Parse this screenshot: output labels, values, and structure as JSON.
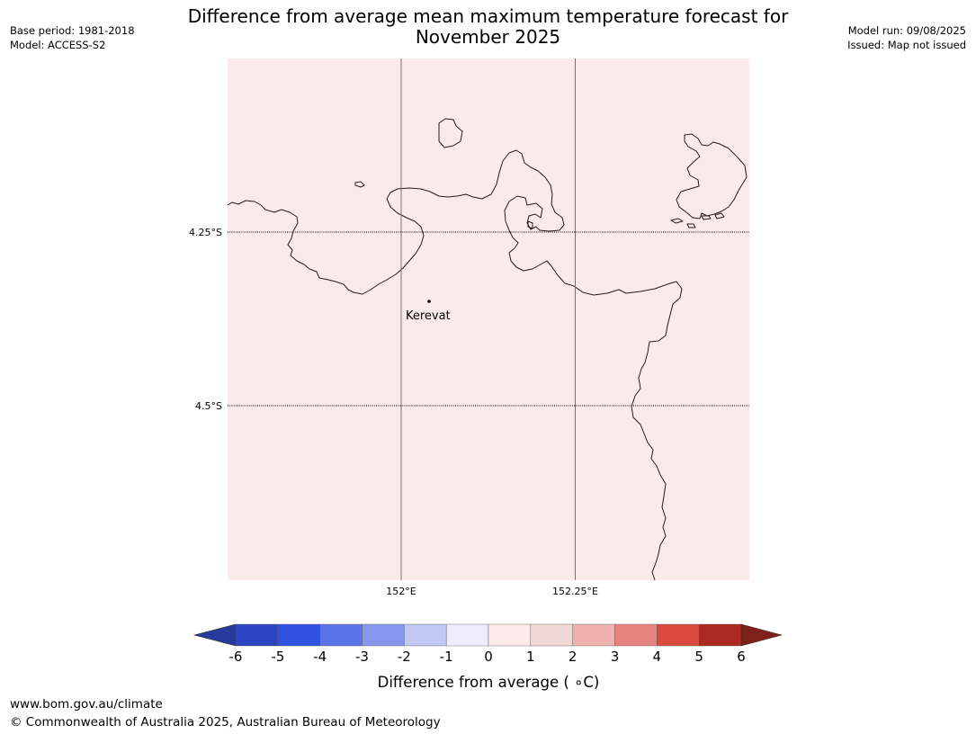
{
  "header": {
    "title_line1": "Difference from average mean maximum temperature forecast for",
    "title_line2": "November 2025",
    "base_period": "Base period: 1981-2018",
    "model": "Model: ACCESS-S2",
    "model_run": "Model run: 09/08/2025",
    "issued": "Issued: Map not issued"
  },
  "map": {
    "fill_color": "#fbeaea",
    "coast_color": "#2b1a1a",
    "lat_labels": [
      "4.25°S",
      "4.5°S"
    ],
    "lon_labels": [
      "152°E",
      "152.25°E"
    ],
    "place": {
      "name": "Kerevat"
    }
  },
  "colorbar": {
    "label": "Difference from average ( ∘C)",
    "ticks": [
      "-6",
      "-5",
      "-4",
      "-3",
      "-2",
      "-1",
      "0",
      "1",
      "2",
      "3",
      "4",
      "5",
      "6"
    ],
    "colors": [
      "#253a9c",
      "#2c45c3",
      "#3052e0",
      "#5a73e6",
      "#8596ec",
      "#c1c8f3",
      "#eceefc",
      "#fcebea",
      "#f0d8d6",
      "#efb2ae",
      "#e78480",
      "#dc4b40",
      "#ad2a22",
      "#7e2119"
    ]
  },
  "footer": {
    "url": "www.bom.gov.au/climate",
    "copyright": "© Commonwealth of Australia 2025, Australian Bureau of Meteorology"
  }
}
